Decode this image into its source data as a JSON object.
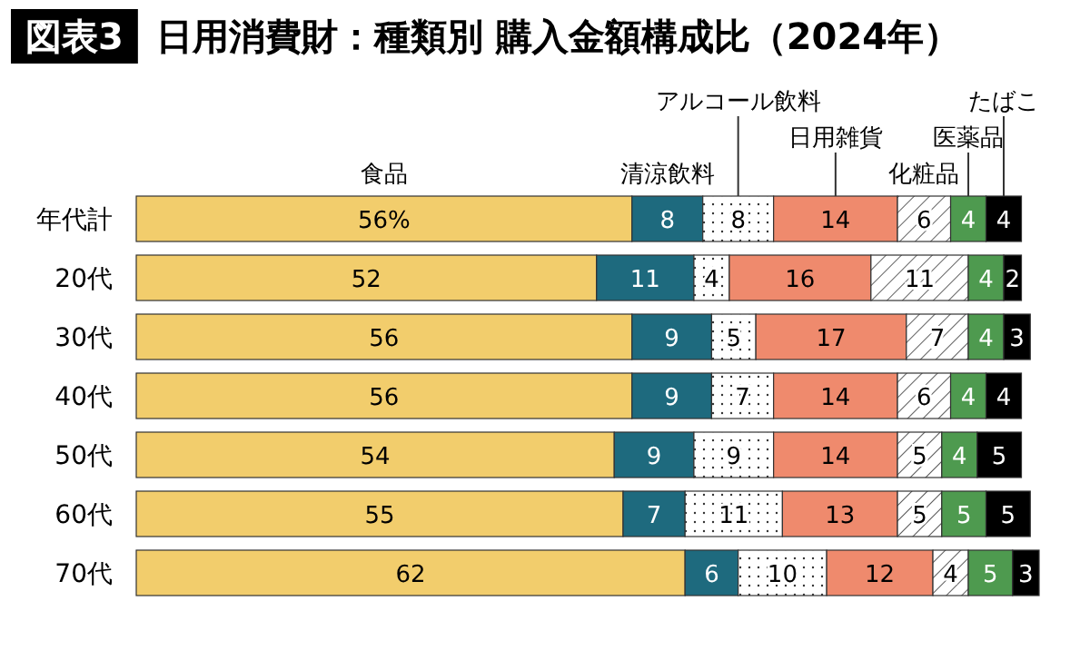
{
  "chart_data": {
    "type": "bar",
    "orientation": "horizontal",
    "stacked": true,
    "title": "図表3 日用消費財：種類別 購入金額構成比（2024年）",
    "categories": [
      "年代計",
      "20代",
      "30代",
      "40代",
      "50代",
      "60代",
      "70代"
    ],
    "series": [
      {
        "name": "食品",
        "color": "#f2cd6c",
        "values": [
          56,
          52,
          56,
          56,
          54,
          55,
          62
        ],
        "value_labels": [
          "56%",
          "52",
          "56",
          "56",
          "54",
          "55",
          "62"
        ]
      },
      {
        "name": "清涼飲料",
        "color": "#1e6a7e",
        "values": [
          8,
          11,
          9,
          9,
          9,
          7,
          6
        ],
        "value_labels": [
          "8",
          "11",
          "9",
          "9",
          "9",
          "7",
          "6"
        ]
      },
      {
        "name": "アルコール飲料",
        "color": "#ffffff",
        "values": [
          8,
          4,
          5,
          7,
          9,
          11,
          10
        ],
        "value_labels": [
          "8",
          "4",
          "5",
          "7",
          "9",
          "11",
          "10"
        ]
      },
      {
        "name": "日用雑貨",
        "color": "#ef8a6d",
        "values": [
          14,
          16,
          17,
          14,
          14,
          13,
          12
        ],
        "value_labels": [
          "14",
          "16",
          "17",
          "14",
          "14",
          "13",
          "12"
        ]
      },
      {
        "name": "化粧品",
        "color": "#ffffff",
        "values": [
          6,
          11,
          7,
          6,
          5,
          5,
          4
        ],
        "value_labels": [
          "6",
          "11",
          "7",
          "6",
          "5",
          "5",
          "4"
        ]
      },
      {
        "name": "医薬品",
        "color": "#4e9a4f",
        "values": [
          4,
          4,
          4,
          4,
          4,
          5,
          5
        ],
        "value_labels": [
          "4",
          "4",
          "4",
          "4",
          "4",
          "5",
          "5"
        ]
      },
      {
        "name": "たばこ",
        "color": "#000000",
        "values": [
          4,
          2,
          3,
          4,
          5,
          5,
          3
        ],
        "value_labels": [
          "4",
          "2",
          "3",
          "4",
          "5",
          "5",
          "3"
        ]
      }
    ]
  }
}
